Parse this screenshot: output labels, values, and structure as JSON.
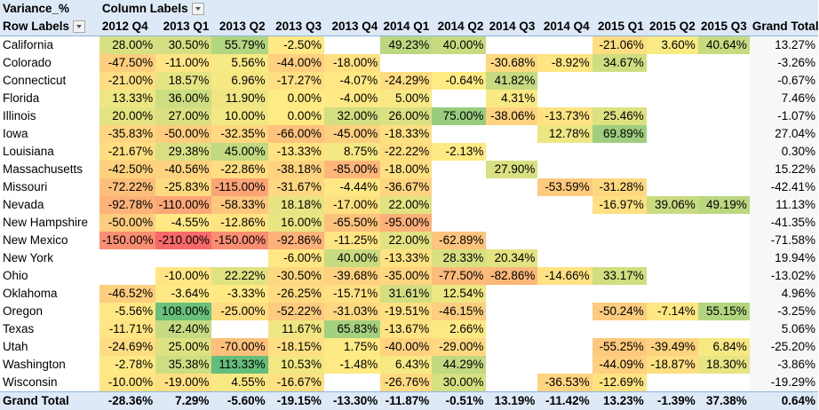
{
  "pivot": {
    "value_field": "Variance_%",
    "column_labels": "Column Labels",
    "row_labels": "Row Labels",
    "grand_total_label": "Grand Total",
    "columns": [
      "2012 Q4",
      "2013 Q1",
      "2013 Q2",
      "2013 Q3",
      "2013 Q4",
      "2014 Q1",
      "2014 Q2",
      "2014 Q3",
      "2014 Q4",
      "2015 Q1",
      "2015 Q2",
      "2015 Q3",
      "Grand Total"
    ],
    "rows": [
      {
        "label": "California",
        "values": [
          "28.00%",
          "30.50%",
          "55.79%",
          "-2.50%",
          "",
          "49.23%",
          "40.00%",
          "",
          "",
          "-21.06%",
          "3.60%",
          "40.64%",
          "13.27%"
        ]
      },
      {
        "label": "Colorado",
        "values": [
          "-47.50%",
          "-11.00%",
          "5.56%",
          "-44.00%",
          "-18.00%",
          "",
          "",
          "-30.68%",
          "-8.92%",
          "34.67%",
          "",
          "",
          "-3.26%"
        ]
      },
      {
        "label": "Connecticut",
        "values": [
          "-21.00%",
          "18.57%",
          "6.96%",
          "-17.27%",
          "-4.07%",
          "-24.29%",
          "-0.64%",
          "41.82%",
          "",
          "",
          "",
          "",
          "-0.67%"
        ]
      },
      {
        "label": "Florida",
        "values": [
          "13.33%",
          "36.00%",
          "11.90%",
          "0.00%",
          "-4.00%",
          "5.00%",
          "",
          "4.31%",
          "",
          "",
          "",
          "",
          "7.46%"
        ]
      },
      {
        "label": "Illinois",
        "values": [
          "20.00%",
          "27.00%",
          "10.00%",
          "0.00%",
          "32.00%",
          "26.00%",
          "75.00%",
          "-38.06%",
          "-13.73%",
          "25.46%",
          "",
          "",
          "-1.07%"
        ]
      },
      {
        "label": "Iowa",
        "values": [
          "-35.83%",
          "-50.00%",
          "-32.35%",
          "-66.00%",
          "-45.00%",
          "-18.33%",
          "",
          "",
          "12.78%",
          "69.89%",
          "",
          "",
          "27.04%"
        ]
      },
      {
        "label": "Louisiana",
        "values": [
          "-21.67%",
          "29.38%",
          "45.00%",
          "-13.33%",
          "8.75%",
          "-22.22%",
          "-2.13%",
          "",
          "",
          "",
          "",
          "",
          "0.30%"
        ]
      },
      {
        "label": "Massachusetts",
        "values": [
          "-42.50%",
          "-40.56%",
          "-22.86%",
          "-38.18%",
          "-85.00%",
          "-18.00%",
          "",
          "27.90%",
          "",
          "",
          "",
          "",
          "15.22%"
        ]
      },
      {
        "label": "Missouri",
        "values": [
          "-72.22%",
          "-25.83%",
          "-115.00%",
          "-31.67%",
          "-4.44%",
          "-36.67%",
          "",
          "",
          "-53.59%",
          "-31.28%",
          "",
          "",
          "-42.41%"
        ]
      },
      {
        "label": "Nevada",
        "values": [
          "-92.78%",
          "-110.00%",
          "-58.33%",
          "18.18%",
          "-17.00%",
          "22.00%",
          "",
          "",
          "",
          "-16.97%",
          "39.06%",
          "49.19%",
          "11.13%"
        ]
      },
      {
        "label": "New Hampshire",
        "values": [
          "-50.00%",
          "-4.55%",
          "-12.86%",
          "16.00%",
          "-65.50%",
          "-95.00%",
          "",
          "",
          "",
          "",
          "",
          "",
          "-41.35%"
        ]
      },
      {
        "label": "New Mexico",
        "values": [
          "-150.00%",
          "-210.00%",
          "-150.00%",
          "-92.86%",
          "-11.25%",
          "22.00%",
          "-62.89%",
          "",
          "",
          "",
          "",
          "",
          "-71.58%"
        ]
      },
      {
        "label": "New York",
        "values": [
          "",
          "",
          "",
          "-6.00%",
          "40.00%",
          "-13.33%",
          "28.33%",
          "20.34%",
          "",
          "",
          "",
          "",
          "19.94%"
        ]
      },
      {
        "label": "Ohio",
        "values": [
          "",
          "-10.00%",
          "22.22%",
          "-30.50%",
          "-39.68%",
          "-35.00%",
          "-77.50%",
          "-82.86%",
          "-14.66%",
          "33.17%",
          "",
          "",
          "-13.02%"
        ]
      },
      {
        "label": "Oklahoma",
        "values": [
          "-46.52%",
          "-3.64%",
          "-3.33%",
          "-26.25%",
          "-15.71%",
          "31.61%",
          "12.54%",
          "",
          "",
          "",
          "",
          "",
          "4.96%"
        ]
      },
      {
        "label": "Oregon",
        "values": [
          "-5.56%",
          "108.00%",
          "-25.00%",
          "-52.22%",
          "-31.03%",
          "-19.51%",
          "-46.15%",
          "",
          "",
          "-50.24%",
          "-7.14%",
          "55.15%",
          "-3.25%"
        ]
      },
      {
        "label": "Texas",
        "values": [
          "-11.71%",
          "42.40%",
          "",
          "11.67%",
          "65.83%",
          "-13.67%",
          "2.66%",
          "",
          "",
          "",
          "",
          "",
          "5.06%"
        ]
      },
      {
        "label": "Utah",
        "values": [
          "-24.69%",
          "25.00%",
          "-70.00%",
          "-18.15%",
          "1.75%",
          "-40.00%",
          "-29.00%",
          "",
          "",
          "-55.25%",
          "-39.49%",
          "6.84%",
          "-25.20%"
        ]
      },
      {
        "label": "Washington",
        "values": [
          "-2.78%",
          "35.38%",
          "113.33%",
          "10.53%",
          "-1.48%",
          "6.43%",
          "44.29%",
          "",
          "",
          "-44.09%",
          "-18.87%",
          "18.30%",
          "-3.86%"
        ]
      },
      {
        "label": "Wisconsin",
        "values": [
          "-10.00%",
          "-19.00%",
          "4.55%",
          "-16.67%",
          "",
          "-26.76%",
          "30.00%",
          "",
          "-36.53%",
          "-12.69%",
          "",
          "",
          "-19.29%"
        ]
      }
    ],
    "grand_total": [
      "-28.36%",
      "7.29%",
      "-5.60%",
      "-19.15%",
      "-13.30%",
      "-11.87%",
      "-0.51%",
      "13.19%",
      "-11.42%",
      "13.23%",
      "-1.39%",
      "37.38%",
      "0.64%"
    ],
    "colors": {
      "header_bg": "#dde9f6",
      "scale_low": "#f8696b",
      "scale_mid": "#ffeb84",
      "scale_high": "#63be7b"
    }
  }
}
